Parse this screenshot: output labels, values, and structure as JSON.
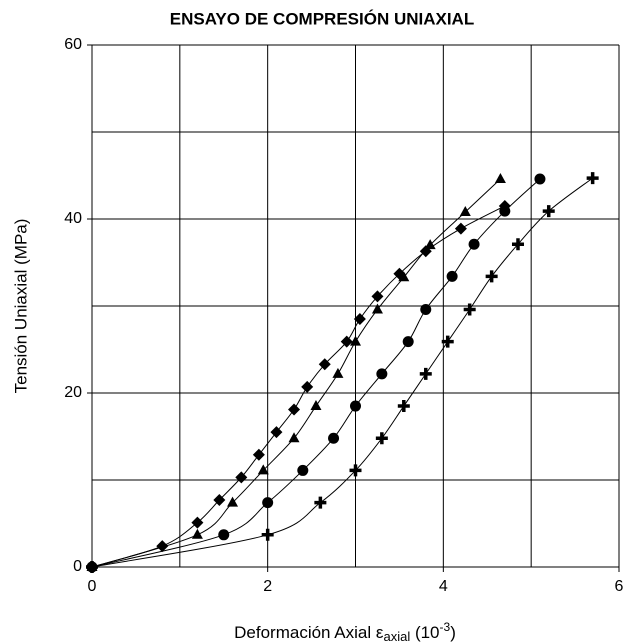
{
  "chart_data": {
    "type": "scatter",
    "title": "ENSAYO DE COMPRESIÓN UNIAXIAL",
    "ylabel": "Tensión Uniaxial (MPa)",
    "xlabel": {
      "text": "Deformación Axial ",
      "symbol": "ε",
      "sub": "axial",
      "unit": " (10",
      "exp": "-3",
      "close": ")"
    },
    "xlim": [
      0,
      6
    ],
    "ylim": [
      0,
      60
    ],
    "xticks": [
      0,
      2,
      4,
      6
    ],
    "yticks": [
      0,
      20,
      40,
      60
    ],
    "xgrid": [
      0,
      1,
      2,
      3,
      4,
      5,
      6
    ],
    "ygrid": [
      0,
      10,
      20,
      30,
      40,
      50,
      60
    ],
    "grid": true,
    "series": [
      {
        "name": "diamond",
        "marker": "diamond",
        "color": "#000000",
        "x": [
          0,
          0.8,
          1.2,
          1.45,
          1.7,
          1.9,
          2.1,
          2.3,
          2.45,
          2.65,
          2.9,
          3.05,
          3.25,
          3.5,
          3.8,
          4.2,
          4.7
        ],
        "values": [
          0,
          2.4,
          5.1,
          7.7,
          10.3,
          12.9,
          15.5,
          18.1,
          20.7,
          23.3,
          25.9,
          28.5,
          31.1,
          33.7,
          36.3,
          38.9,
          41.5
        ]
      },
      {
        "name": "triangle",
        "marker": "triangle",
        "color": "#000000",
        "x": [
          0,
          1.2,
          1.6,
          1.95,
          2.3,
          2.55,
          2.8,
          3.0,
          3.25,
          3.55,
          3.85,
          4.25,
          4.65
        ],
        "values": [
          0,
          3.7,
          7.4,
          11.1,
          14.8,
          18.5,
          22.2,
          25.9,
          29.6,
          33.3,
          37.0,
          40.8,
          44.6
        ]
      },
      {
        "name": "circle",
        "marker": "circle",
        "color": "#000000",
        "x": [
          0,
          1.5,
          2.0,
          2.4,
          2.75,
          3.0,
          3.3,
          3.6,
          3.8,
          4.1,
          4.35,
          4.7,
          5.1
        ],
        "values": [
          0,
          3.7,
          7.4,
          11.1,
          14.8,
          18.5,
          22.2,
          25.9,
          29.6,
          33.4,
          37.1,
          40.9,
          44.6
        ]
      },
      {
        "name": "plus",
        "marker": "plus",
        "color": "#000000",
        "x": [
          0,
          2.0,
          2.6,
          3.0,
          3.3,
          3.55,
          3.8,
          4.05,
          4.3,
          4.55,
          4.85,
          5.2,
          5.7
        ],
        "values": [
          0,
          3.7,
          7.4,
          11.1,
          14.8,
          18.5,
          22.2,
          25.9,
          29.6,
          33.4,
          37.1,
          40.9,
          44.7
        ]
      }
    ]
  }
}
